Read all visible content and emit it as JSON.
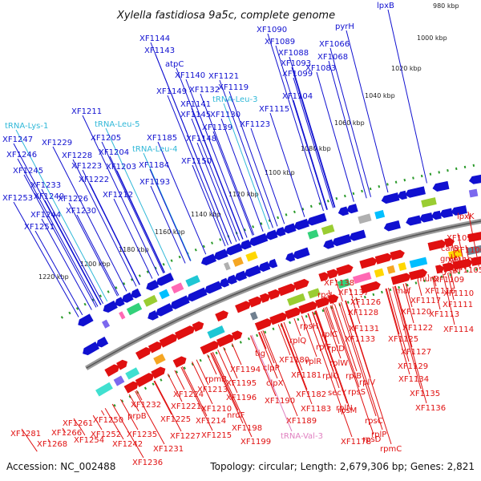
{
  "header": {
    "title": "Xylella fastidiosa 9a5c, complete genome"
  },
  "footer": {
    "accession": "Accession: NC_002488",
    "topology": "Topology: circular; Length: 2,679,306 bp; Genes: 2,821"
  },
  "colors": {
    "forward": "#1010d0",
    "reverse": "#e01010",
    "trna": "#30b8d8",
    "trna_reverse": "#e080c0",
    "ticks": "#2a9a2a",
    "backbone": "#808080"
  },
  "ticks": [
    "980 kbp",
    "1000 kbp",
    "1020 kbp",
    "1040 kbp",
    "1060 kbp",
    "1080 kbp",
    "1100 kbp",
    "1120 kbp",
    "1140 kbp",
    "1160 kbp",
    "1180 kbp",
    "1200 kbp",
    "1220 kbp"
  ],
  "top_labels": [
    {
      "text": "lpxB",
      "kind": "gene"
    },
    {
      "text": "pyrH",
      "kind": "gene"
    },
    {
      "text": "XF1066",
      "kind": "gene"
    },
    {
      "text": "XF1068",
      "kind": "gene"
    },
    {
      "text": "XF1090",
      "kind": "gene"
    },
    {
      "text": "XF1089",
      "kind": "gene"
    },
    {
      "text": "XF1088",
      "kind": "gene"
    },
    {
      "text": "XF1093",
      "kind": "gene"
    },
    {
      "text": "XF1099",
      "kind": "gene"
    },
    {
      "text": "XF1083",
      "kind": "gene"
    },
    {
      "text": "XF1104",
      "kind": "gene"
    },
    {
      "text": "XF1115",
      "kind": "gene"
    },
    {
      "text": "XF1123",
      "kind": "gene"
    },
    {
      "text": "XF1121",
      "kind": "gene"
    },
    {
      "text": "XF1119",
      "kind": "gene"
    },
    {
      "text": "tRNA-Leu-3",
      "kind": "trna"
    },
    {
      "text": "XF1144",
      "kind": "gene"
    },
    {
      "text": "XF1143",
      "kind": "gene"
    },
    {
      "text": "atpC",
      "kind": "gene"
    },
    {
      "text": "XF1140",
      "kind": "gene"
    },
    {
      "text": "XF1149",
      "kind": "gene"
    },
    {
      "text": "XF1132",
      "kind": "gene"
    },
    {
      "text": "XF1141",
      "kind": "gene"
    },
    {
      "text": "XF1145",
      "kind": "gene"
    },
    {
      "text": "XF1130",
      "kind": "gene"
    },
    {
      "text": "XF1139",
      "kind": "gene"
    },
    {
      "text": "XF1148",
      "kind": "gene"
    },
    {
      "text": "XF1211",
      "kind": "gene"
    },
    {
      "text": "tRNA-Leu-5",
      "kind": "trna"
    },
    {
      "text": "tRNA-Lys-1",
      "kind": "trna"
    },
    {
      "text": "XF1185",
      "kind": "gene"
    },
    {
      "text": "tRNA-Leu-4",
      "kind": "trna"
    },
    {
      "text": "XF1150",
      "kind": "gene"
    },
    {
      "text": "XF1247",
      "kind": "gene"
    },
    {
      "text": "XF1229",
      "kind": "gene"
    },
    {
      "text": "XF1205",
      "kind": "gene"
    },
    {
      "text": "XF1246",
      "kind": "gene"
    },
    {
      "text": "XF1228",
      "kind": "gene"
    },
    {
      "text": "XF1204",
      "kind": "gene"
    },
    {
      "text": "XF1223",
      "kind": "gene"
    },
    {
      "text": "XF1203",
      "kind": "gene"
    },
    {
      "text": "XF1184",
      "kind": "gene"
    },
    {
      "text": "XF1245",
      "kind": "gene"
    },
    {
      "text": "XF1222",
      "kind": "gene"
    },
    {
      "text": "XF1233",
      "kind": "gene"
    },
    {
      "text": "XF1193",
      "kind": "gene"
    },
    {
      "text": "XF1240",
      "kind": "gene"
    },
    {
      "text": "XF1226",
      "kind": "gene"
    },
    {
      "text": "XF1212",
      "kind": "gene"
    },
    {
      "text": "XF1253",
      "kind": "gene"
    },
    {
      "text": "XF1230",
      "kind": "gene"
    },
    {
      "text": "XF1244",
      "kind": "gene"
    },
    {
      "text": "XF1251",
      "kind": "gene"
    }
  ],
  "bottom_labels": [
    {
      "text": "lpxK",
      "kind": "gene"
    },
    {
      "text": "XF1095",
      "kind": "gene"
    },
    {
      "text": "carB",
      "kind": "gene"
    },
    {
      "text": "XF1100",
      "kind": "gene"
    },
    {
      "text": "greA",
      "kind": "gene"
    },
    {
      "text": "XF1103",
      "kind": "gene"
    },
    {
      "text": "XF1105",
      "kind": "gene"
    },
    {
      "text": "lysS",
      "kind": "gene"
    },
    {
      "text": "XF1109",
      "kind": "gene"
    },
    {
      "text": "murD",
      "kind": "gene"
    },
    {
      "text": "XF1116",
      "kind": "gene"
    },
    {
      "text": "XF1110",
      "kind": "gene"
    },
    {
      "text": "XF1138",
      "kind": "gene"
    },
    {
      "text": "maf",
      "kind": "gene"
    },
    {
      "text": "XF1117",
      "kind": "gene"
    },
    {
      "text": "XF1111",
      "kind": "gene"
    },
    {
      "text": "XF1137",
      "kind": "gene"
    },
    {
      "text": "XF1126",
      "kind": "gene"
    },
    {
      "text": "XF1120",
      "kind": "gene"
    },
    {
      "text": "XF1113",
      "kind": "gene"
    },
    {
      "text": "XF1128",
      "kind": "gene"
    },
    {
      "text": "rpsJ",
      "kind": "gene"
    },
    {
      "text": "XF1131",
      "kind": "gene"
    },
    {
      "text": "XF1122",
      "kind": "gene"
    },
    {
      "text": "XF1114",
      "kind": "gene"
    },
    {
      "text": "rpsH",
      "kind": "gene"
    },
    {
      "text": "rplC",
      "kind": "gene"
    },
    {
      "text": "XF1133",
      "kind": "gene"
    },
    {
      "text": "XF1125",
      "kind": "gene"
    },
    {
      "text": "rplQ",
      "kind": "gene"
    },
    {
      "text": "rplF",
      "kind": "gene"
    },
    {
      "text": "rplD",
      "kind": "gene"
    },
    {
      "text": "XF1127",
      "kind": "gene"
    },
    {
      "text": "tig",
      "kind": "gene"
    },
    {
      "text": "rplR",
      "kind": "gene"
    },
    {
      "text": "rplW",
      "kind": "gene"
    },
    {
      "text": "clpP",
      "kind": "gene"
    },
    {
      "text": "XF1180",
      "kind": "gene"
    },
    {
      "text": "rplO",
      "kind": "gene"
    },
    {
      "text": "rplB",
      "kind": "gene"
    },
    {
      "text": "XF1129",
      "kind": "gene"
    },
    {
      "text": "XF1194",
      "kind": "gene"
    },
    {
      "text": "XF1181",
      "kind": "gene"
    },
    {
      "text": "rplV",
      "kind": "gene"
    },
    {
      "text": "XF1134",
      "kind": "gene"
    },
    {
      "text": "rpmB",
      "kind": "gene"
    },
    {
      "text": "XF1195",
      "kind": "gene"
    },
    {
      "text": "clpX",
      "kind": "gene"
    },
    {
      "text": "XF1182",
      "kind": "gene"
    },
    {
      "text": "secY",
      "kind": "gene"
    },
    {
      "text": "rpsS",
      "kind": "gene"
    },
    {
      "text": "XF1135",
      "kind": "gene"
    },
    {
      "text": "XF1224",
      "kind": "gene"
    },
    {
      "text": "XF1213",
      "kind": "gene"
    },
    {
      "text": "XF1196",
      "kind": "gene"
    },
    {
      "text": "XF1190",
      "kind": "gene"
    },
    {
      "text": "rplN",
      "kind": "gene"
    },
    {
      "text": "XF1136",
      "kind": "gene"
    },
    {
      "text": "XF1232",
      "kind": "gene"
    },
    {
      "text": "XF1221",
      "kind": "gene"
    },
    {
      "text": "XF1210",
      "kind": "gene"
    },
    {
      "text": "XF1183",
      "kind": "gene"
    },
    {
      "text": "rpsM",
      "kind": "gene"
    },
    {
      "text": "XF1250",
      "kind": "gene"
    },
    {
      "text": "prpB",
      "kind": "gene"
    },
    {
      "text": "XF1225",
      "kind": "gene"
    },
    {
      "text": "XF1214",
      "kind": "gene"
    },
    {
      "text": "nrdF",
      "kind": "gene"
    },
    {
      "text": "XF1189",
      "kind": "gene"
    },
    {
      "text": "rpsC",
      "kind": "gene"
    },
    {
      "text": "XF1261",
      "kind": "gene"
    },
    {
      "text": "XF1252",
      "kind": "gene"
    },
    {
      "text": "XF1235",
      "kind": "gene"
    },
    {
      "text": "XF1198",
      "kind": "gene"
    },
    {
      "text": "rpsD",
      "kind": "gene"
    },
    {
      "text": "XF1281",
      "kind": "gene"
    },
    {
      "text": "XF1266",
      "kind": "gene"
    },
    {
      "text": "XF1227",
      "kind": "gene"
    },
    {
      "text": "XF1215",
      "kind": "gene"
    },
    {
      "text": "tRNA-Val-3",
      "kind": "trna_reverse"
    },
    {
      "text": "rplP",
      "kind": "gene"
    },
    {
      "text": "XF1268",
      "kind": "gene"
    },
    {
      "text": "XF1254",
      "kind": "gene"
    },
    {
      "text": "XF1242",
      "kind": "gene"
    },
    {
      "text": "XF1199",
      "kind": "gene"
    },
    {
      "text": "XF1178",
      "kind": "gene"
    },
    {
      "text": "XF1231",
      "kind": "gene"
    },
    {
      "text": "rpmC",
      "kind": "gene"
    },
    {
      "text": "XF1236",
      "kind": "gene"
    }
  ]
}
